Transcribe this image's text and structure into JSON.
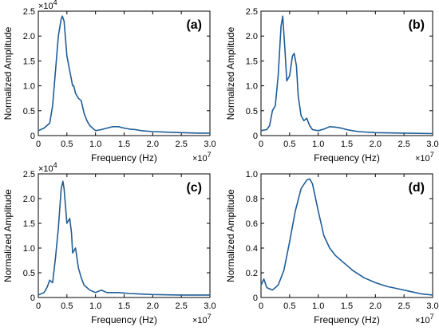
{
  "chart_data": [
    {
      "type": "line",
      "panel_label": "(a)",
      "xlabel": "Frequency (Hz)",
      "ylabel": "Normalized Amplitude",
      "x_multiplier": "×10",
      "x_exponent": "7",
      "y_multiplier": "×10",
      "y_exponent": "4",
      "xlim": [
        0,
        3.0
      ],
      "ylim": [
        0,
        2.5
      ],
      "xticks": [
        "0",
        "0.5",
        "1.0",
        "1.5",
        "2.0",
        "2.5",
        "3.0"
      ],
      "yticks": [
        "0",
        "0.5",
        "1.0",
        "1.5",
        "2.0",
        "2.5"
      ],
      "series": [
        {
          "x": [
            0,
            0.1,
            0.2,
            0.25,
            0.3,
            0.35,
            0.4,
            0.42,
            0.45,
            0.5,
            0.55,
            0.6,
            0.62,
            0.65,
            0.7,
            0.75,
            0.8,
            0.85,
            0.9,
            0.95,
            1.0,
            1.1,
            1.2,
            1.3,
            1.4,
            1.5,
            1.6,
            1.7,
            1.8,
            2.0,
            2.2,
            2.5,
            2.8,
            3.0
          ],
          "y": [
            0.1,
            0.15,
            0.25,
            0.6,
            1.3,
            2.0,
            2.35,
            2.4,
            2.3,
            1.6,
            1.3,
            1.0,
            1.0,
            0.85,
            0.75,
            0.7,
            0.45,
            0.3,
            0.2,
            0.15,
            0.1,
            0.12,
            0.15,
            0.18,
            0.18,
            0.15,
            0.13,
            0.12,
            0.1,
            0.08,
            0.07,
            0.06,
            0.05,
            0.05
          ]
        }
      ]
    },
    {
      "type": "line",
      "panel_label": "(b)",
      "xlabel": "Frequency (Hz)",
      "ylabel": "Normalized Amplitude",
      "x_multiplier": "×10",
      "x_exponent": "7",
      "xlim": [
        0,
        3.0
      ],
      "ylim": [
        0,
        2.5
      ],
      "xticks": [
        "0",
        "0.5",
        "1.0",
        "1.5",
        "2.0",
        "2.5",
        "3.0"
      ],
      "yticks": [
        "0",
        "0.5",
        "1.0",
        "1.5",
        "2.0",
        "2.5"
      ],
      "series": [
        {
          "x": [
            0,
            0.1,
            0.15,
            0.2,
            0.25,
            0.3,
            0.35,
            0.38,
            0.42,
            0.45,
            0.5,
            0.55,
            0.58,
            0.62,
            0.65,
            0.7,
            0.75,
            0.8,
            0.85,
            0.9,
            1.0,
            1.1,
            1.2,
            1.3,
            1.4,
            1.5,
            1.6,
            1.7,
            2.0,
            2.5,
            3.0
          ],
          "y": [
            0.1,
            0.12,
            0.2,
            0.5,
            0.6,
            1.2,
            2.2,
            2.4,
            1.7,
            1.1,
            1.2,
            1.6,
            1.65,
            1.4,
            0.8,
            0.4,
            0.3,
            0.35,
            0.2,
            0.12,
            0.1,
            0.13,
            0.18,
            0.17,
            0.15,
            0.12,
            0.1,
            0.08,
            0.06,
            0.05,
            0.04
          ]
        }
      ]
    },
    {
      "type": "line",
      "panel_label": "(c)",
      "xlabel": "Frequency (Hz)",
      "ylabel": "Normalized Amplitude",
      "x_multiplier": "×10",
      "x_exponent": "7",
      "y_multiplier": "×10",
      "y_exponent": "4",
      "xlim": [
        0,
        3.0
      ],
      "ylim": [
        0,
        2.5
      ],
      "xticks": [
        "0",
        "0.5",
        "1.0",
        "1.5",
        "2.0",
        "2.5",
        "3.0"
      ],
      "yticks": [
        "0",
        "0.5",
        "1.0",
        "1.5",
        "2.0",
        "2.5"
      ],
      "series": [
        {
          "x": [
            0,
            0.1,
            0.15,
            0.2,
            0.25,
            0.3,
            0.35,
            0.4,
            0.43,
            0.45,
            0.5,
            0.55,
            0.58,
            0.6,
            0.65,
            0.7,
            0.75,
            0.8,
            0.9,
            1.0,
            1.1,
            1.2,
            1.4,
            1.6,
            1.8,
            2.0,
            2.5,
            3.0
          ],
          "y": [
            0.05,
            0.1,
            0.2,
            0.35,
            0.3,
            0.8,
            1.4,
            2.2,
            2.35,
            2.2,
            1.5,
            1.6,
            1.3,
            0.9,
            1.0,
            0.6,
            0.4,
            0.25,
            0.15,
            0.1,
            0.15,
            0.1,
            0.1,
            0.08,
            0.07,
            0.06,
            0.05,
            0.05
          ]
        }
      ]
    },
    {
      "type": "line",
      "panel_label": "(d)",
      "xlabel": "Frequency (Hz)",
      "ylabel": "Normalized Amplitude",
      "x_multiplier": "×10",
      "x_exponent": "7",
      "xlim": [
        0,
        3.0
      ],
      "ylim": [
        0,
        1.0
      ],
      "xticks": [
        "0",
        "0.5",
        "1.0",
        "1.5",
        "2.0",
        "2.5",
        "3.0"
      ],
      "yticks": [
        "0",
        "0.2",
        "0.4",
        "0.6",
        "0.8",
        "1.0"
      ],
      "series": [
        {
          "x": [
            0,
            0.05,
            0.1,
            0.15,
            0.2,
            0.3,
            0.4,
            0.5,
            0.6,
            0.7,
            0.8,
            0.85,
            0.9,
            1.0,
            1.1,
            1.2,
            1.3,
            1.4,
            1.5,
            1.6,
            1.8,
            2.0,
            2.2,
            2.4,
            2.6,
            2.8,
            3.0
          ],
          "y": [
            0.1,
            0.15,
            0.08,
            0.07,
            0.06,
            0.1,
            0.22,
            0.45,
            0.7,
            0.88,
            0.95,
            0.96,
            0.92,
            0.7,
            0.5,
            0.4,
            0.34,
            0.3,
            0.26,
            0.22,
            0.16,
            0.12,
            0.09,
            0.07,
            0.05,
            0.03,
            0.02
          ]
        }
      ]
    }
  ]
}
